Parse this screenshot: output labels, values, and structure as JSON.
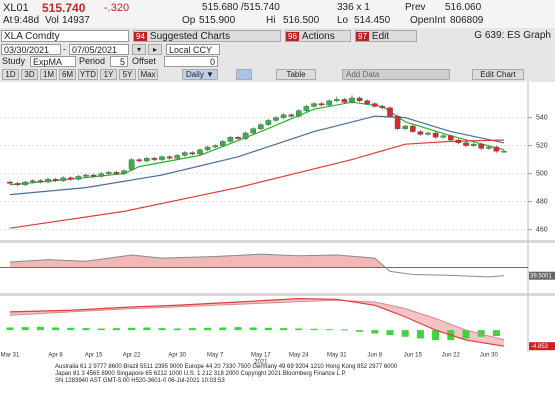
{
  "header": {
    "ticker": "XL01",
    "last": "515.740",
    "change": "-.320",
    "bid_ask": "515.680 /515.740",
    "size": "336 x 1",
    "prev": {
      "label": "Prev",
      "value": "516.060"
    },
    "row2": [
      {
        "label": "At",
        "value": "9:48d"
      },
      {
        "label": "Vol",
        "value": "14937"
      },
      {
        "label": "Op",
        "value": "515.900"
      },
      {
        "label": "Hi",
        "value": "516.500"
      },
      {
        "label": "Lo",
        "value": "514.450"
      },
      {
        "label": "OpenInt",
        "value": "806809"
      }
    ]
  },
  "toolbar": {
    "security": "XLA Comdty",
    "menus": [
      {
        "num": "94",
        "label": "Suggested Charts"
      },
      {
        "num": "96",
        "label": "Actions"
      },
      {
        "num": "97",
        "label": "Edit"
      }
    ],
    "graph": "G 639: ES Graph",
    "start_date": "03/30/2021",
    "end_date": "07/05/2021",
    "currency": "Local CCY",
    "study": {
      "label": "Study",
      "value": "ExpMA",
      "period_label": "Period",
      "period": "5",
      "offset_label": "Offset",
      "offset": "0"
    },
    "ranges": [
      "1D",
      "3D",
      "1M",
      "6M",
      "YTD",
      "1Y",
      "5Y",
      "Max"
    ],
    "frequency": "Daily ▼",
    "table": "Table",
    "add_data": "Add Data",
    "edit_chart": "Edit Chart"
  },
  "chart_data": {
    "type": "candlestick",
    "up_color": "#33b24a",
    "down_color": "#e2262c",
    "categories": [
      "Mar 31",
      null,
      null,
      null,
      null,
      null,
      "Apr 8",
      null,
      null,
      null,
      null,
      "Apr 15",
      null,
      null,
      null,
      null,
      "Apr 22",
      null,
      null,
      null,
      null,
      null,
      "Apr 30",
      null,
      null,
      null,
      null,
      "May 7",
      null,
      null,
      null,
      null,
      null,
      "May 17",
      null,
      null,
      null,
      null,
      "May 24",
      null,
      null,
      null,
      null,
      "May 31",
      null,
      null,
      null,
      null,
      "Jun 8",
      null,
      null,
      null,
      null,
      "Jun 15",
      null,
      null,
      null,
      null,
      "Jun 22",
      null,
      null,
      null,
      null,
      "Jun 30",
      null,
      null
    ],
    "year": "2021",
    "ohlc": [
      [
        494,
        495,
        492,
        493
      ],
      [
        493,
        494,
        491,
        492
      ],
      [
        492,
        495,
        491,
        494
      ],
      [
        494,
        496,
        493,
        495
      ],
      [
        495,
        496,
        493,
        494
      ],
      [
        494,
        497,
        493,
        496
      ],
      [
        496,
        497,
        494,
        495
      ],
      [
        495,
        498,
        494,
        497
      ],
      [
        497,
        498,
        495,
        496
      ],
      [
        496,
        499,
        495,
        498
      ],
      [
        498,
        500,
        497,
        499
      ],
      [
        499,
        500,
        497,
        498
      ],
      [
        498,
        501,
        497,
        500
      ],
      [
        500,
        502,
        499,
        501
      ],
      [
        501,
        502,
        499,
        500
      ],
      [
        500,
        503,
        499,
        502
      ],
      [
        503,
        511,
        502,
        510
      ],
      [
        510,
        511,
        508,
        509
      ],
      [
        509,
        512,
        508,
        511
      ],
      [
        511,
        512,
        509,
        510
      ],
      [
        510,
        513,
        509,
        512
      ],
      [
        512,
        513,
        510,
        511
      ],
      [
        511,
        514,
        510,
        513
      ],
      [
        513,
        516,
        512,
        515
      ],
      [
        515,
        516,
        513,
        514
      ],
      [
        514,
        518,
        513,
        517
      ],
      [
        517,
        520,
        516,
        519
      ],
      [
        519,
        521,
        518,
        520
      ],
      [
        520,
        524,
        519,
        523
      ],
      [
        523,
        527,
        522,
        526
      ],
      [
        526,
        527,
        524,
        525
      ],
      [
        525,
        530,
        524,
        529
      ],
      [
        529,
        533,
        528,
        532
      ],
      [
        532,
        536,
        531,
        535
      ],
      [
        535,
        539,
        534,
        538
      ],
      [
        538,
        541,
        537,
        540
      ],
      [
        540,
        543,
        539,
        542
      ],
      [
        542,
        543,
        540,
        541
      ],
      [
        541,
        546,
        540,
        545
      ],
      [
        545,
        549,
        544,
        548
      ],
      [
        548,
        551,
        547,
        550
      ],
      [
        550,
        551,
        548,
        549
      ],
      [
        549,
        553,
        548,
        552
      ],
      [
        552,
        555,
        551,
        553
      ],
      [
        553,
        554,
        550,
        551
      ],
      [
        551,
        556,
        550,
        554
      ],
      [
        554,
        555,
        551,
        552
      ],
      [
        552,
        553,
        549,
        550
      ],
      [
        550,
        551,
        547,
        548
      ],
      [
        548,
        549,
        546,
        547
      ],
      [
        547,
        548,
        540,
        541
      ],
      [
        541,
        542,
        531,
        532
      ],
      [
        532,
        535,
        531,
        534
      ],
      [
        534,
        535,
        529,
        530
      ],
      [
        530,
        531,
        527,
        528
      ],
      [
        528,
        530,
        527,
        529
      ],
      [
        529,
        530,
        525,
        526
      ],
      [
        526,
        528,
        525,
        527
      ],
      [
        527,
        528,
        523,
        524
      ],
      [
        524,
        525,
        521,
        522
      ],
      [
        522,
        523,
        519,
        520
      ],
      [
        520,
        522,
        519,
        521
      ],
      [
        521,
        522,
        517,
        518
      ],
      [
        518,
        520,
        517,
        519
      ],
      [
        519,
        520,
        515,
        516
      ],
      [
        516,
        517,
        515,
        516
      ]
    ],
    "series": [
      {
        "color": "#2bb32b",
        "x": [
          0,
          8,
          15,
          17,
          25,
          33,
          40,
          45,
          49,
          52,
          58,
          65
        ],
        "values": [
          492,
          496,
          500,
          505,
          513,
          530,
          546,
          551,
          548,
          537,
          527,
          517
        ]
      },
      {
        "color": "#4a6d9c",
        "x": [
          0,
          10,
          20,
          30,
          40,
          48,
          52,
          58,
          65
        ],
        "values": [
          485,
          490,
          499,
          512,
          530,
          541,
          540,
          530,
          522
        ]
      },
      {
        "color": "#e03c3c",
        "x": [
          0,
          15,
          30,
          45,
          52,
          58,
          65
        ],
        "values": [
          461,
          473,
          490,
          510,
          521,
          523,
          524
        ]
      }
    ],
    "ylim": [
      453,
      564
    ],
    "yticks": [
      460,
      480,
      500,
      520,
      540
    ],
    "grid": true,
    "rsi": {
      "color": "#8a8a8a",
      "fill": "#f2b8b8",
      "threshold": 50,
      "threshold_color": "#e03c3c",
      "ylim": [
        20,
        80
      ],
      "x": [
        0,
        5,
        10,
        16,
        20,
        27,
        33,
        38,
        43,
        48,
        50,
        53,
        58,
        63,
        65
      ],
      "values": [
        57,
        60,
        58,
        66,
        62,
        64,
        67,
        65,
        66,
        62,
        45,
        41,
        40,
        38,
        39.5001
      ]
    },
    "macd": {
      "ylim": [
        -6,
        10
      ],
      "line_color": "#e03c3c",
      "signal_color": "#d98a8a",
      "fill": "#f4c4c4",
      "hist_color": "#3fd23f",
      "x": [
        0,
        8,
        16,
        22,
        30,
        38,
        43,
        48,
        52,
        56,
        60,
        65
      ],
      "values": [
        5.5,
        6,
        7,
        7.5,
        8.5,
        9.5,
        9.3,
        7.5,
        4,
        0,
        -3,
        -4.853
      ],
      "signal": [
        4.5,
        5.5,
        6.5,
        7,
        7.8,
        8.6,
        9,
        8.5,
        6.5,
        3.5,
        0,
        -2.9
      ],
      "hist_x": [
        0,
        2,
        4,
        6,
        8,
        10,
        12,
        14,
        16,
        18,
        20,
        22,
        24,
        26,
        28,
        30,
        32,
        34,
        36,
        38,
        40,
        42,
        44,
        46,
        48,
        50,
        52,
        54,
        56,
        58,
        60,
        62,
        64
      ],
      "hist": [
        0.8,
        0.9,
        1,
        0.8,
        0.7,
        0.6,
        0.5,
        0.6,
        0.7,
        0.8,
        0.6,
        0.5,
        0.6,
        0.7,
        0.8,
        0.9,
        0.8,
        0.7,
        0.6,
        0.5,
        0.4,
        0.3,
        0.2,
        -0.5,
        -1,
        -1.5,
        -2,
        -2.5,
        -3,
        -3,
        -2.5,
        -2,
        -1.8
      ]
    }
  },
  "footer": [
    "Australia 61 2 9777 8600 Brazil 5511 2395 9000 Europe 44 20 7330 7500 Germany 49 69 9204 1210 Hong Kong 852 2977 6000",
    "Japan 81 3 4565 8900        Singapore 65 6212 1000        U.S. 1 212 318 2000        Copyright 2021 Bloomberg Finance L.P.",
    "SN 1283940 AST  GMT-5:00 H520-3601-0 06-Jul-2021 10:03:53"
  ]
}
